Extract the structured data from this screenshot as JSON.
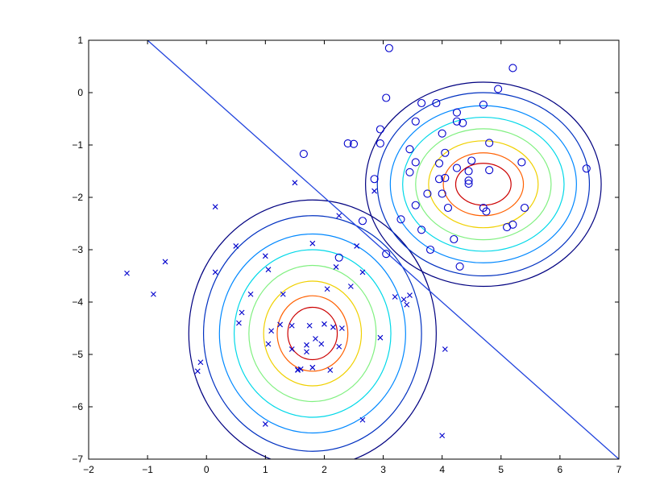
{
  "chart_data": {
    "type": "scatter",
    "title": "",
    "xlabel": "",
    "ylabel": "",
    "xlim": [
      -2,
      7
    ],
    "ylim": [
      -7,
      1
    ],
    "grid": false,
    "x_ticks": [
      -2,
      -1,
      0,
      1,
      2,
      3,
      4,
      5,
      6,
      7
    ],
    "y_ticks": [
      1,
      0,
      -1,
      -2,
      -3,
      -4,
      -5,
      -6,
      -7
    ],
    "x_tick_labels": [
      "−2",
      "−1",
      "0",
      "1",
      "2",
      "3",
      "4",
      "5",
      "6",
      "7"
    ],
    "y_tick_labels": [
      "1",
      "0",
      "−1",
      "−2",
      "−3",
      "−4",
      "−5",
      "−6",
      "−7"
    ],
    "colors": {
      "axis": "#000000",
      "marker": "#0000cc",
      "boundary": "#2244dd",
      "contour_levels": [
        "#000080",
        "#0030c0",
        "#0088ff",
        "#00d8e8",
        "#80f080",
        "#f0d000",
        "#ff6000",
        "#cc0000",
        "#700000"
      ]
    },
    "decision_boundary": {
      "x": [
        -1,
        7
      ],
      "y": [
        1,
        -7
      ]
    },
    "contours": [
      {
        "center": [
          1.8,
          -4.6
        ],
        "rx": [
          2.1,
          1.85,
          1.58,
          1.33,
          1.08,
          0.83,
          0.6,
          0.42
        ],
        "ry": [
          2.55,
          2.25,
          1.9,
          1.6,
          1.3,
          1.0,
          0.72,
          0.5
        ]
      },
      {
        "center": [
          4.7,
          -1.75
        ],
        "rx": [
          2.0,
          1.8,
          1.58,
          1.37,
          1.15,
          0.93,
          0.68,
          0.47
        ],
        "ry": [
          1.95,
          1.75,
          1.5,
          1.28,
          1.06,
          0.83,
          0.6,
          0.4
        ]
      }
    ],
    "series": [
      {
        "marker": "o",
        "x": [
          3.1,
          5.2,
          3.05,
          3.65,
          3.9,
          4.95,
          4.7,
          4.25,
          4.35,
          3.55,
          4.25,
          2.95,
          4.0,
          2.4,
          2.5,
          2.95,
          4.8,
          3.45,
          4.05,
          1.65,
          3.55,
          4.5,
          5.35,
          6.45,
          3.95,
          4.8,
          4.25,
          3.45,
          4.45,
          4.05,
          2.85,
          3.95,
          4.45,
          4.45,
          3.75,
          4.0,
          3.55,
          5.4,
          4.1,
          4.7,
          4.75,
          3.3,
          2.65,
          5.2,
          3.65,
          5.1,
          4.2,
          3.8,
          3.05,
          2.25,
          4.3
        ],
        "y": [
          0.85,
          0.47,
          -0.1,
          -0.2,
          -0.2,
          0.07,
          -0.23,
          -0.38,
          -0.58,
          -0.55,
          -0.55,
          -0.7,
          -0.78,
          -0.97,
          -0.98,
          -0.97,
          -0.96,
          -1.08,
          -1.15,
          -1.17,
          -1.33,
          -1.3,
          -1.33,
          -1.45,
          -1.35,
          -1.48,
          -1.44,
          -1.52,
          -1.5,
          -1.63,
          -1.65,
          -1.65,
          -1.68,
          -1.74,
          -1.93,
          -1.93,
          -2.15,
          -2.2,
          -2.2,
          -2.2,
          -2.27,
          -2.42,
          -2.45,
          -2.52,
          -2.62,
          -2.57,
          -2.8,
          -3.0,
          -3.08,
          -3.15,
          -3.32
        ]
      },
      {
        "marker": "x",
        "x": [
          1.5,
          0.15,
          2.25,
          2.85,
          0.5,
          1.8,
          2.55,
          2.2,
          1.0,
          -0.7,
          1.05,
          0.15,
          2.65,
          -1.35,
          2.45,
          2.05,
          -0.9,
          0.75,
          1.3,
          3.45,
          3.4,
          3.2,
          0.6,
          1.45,
          1.25,
          1.75,
          1.1,
          2.0,
          2.3,
          0.55,
          2.15,
          2.95,
          1.95,
          2.25,
          1.05,
          1.7,
          1.45,
          1.85,
          1.7,
          4.05,
          1.8,
          -0.1,
          1.55,
          2.1,
          1.6,
          1.55,
          1.8,
          -0.15,
          2.65,
          1.0,
          4.0,
          3.35
        ],
        "y": [
          -1.72,
          -2.18,
          -2.35,
          -1.88,
          -2.93,
          -2.88,
          -2.93,
          -3.33,
          -3.12,
          -3.23,
          -3.38,
          -3.43,
          -3.43,
          -3.45,
          -3.7,
          -3.75,
          -3.85,
          -3.85,
          -3.85,
          -3.87,
          -4.05,
          -3.9,
          -4.2,
          -4.45,
          -4.43,
          -4.45,
          -4.55,
          -4.42,
          -4.5,
          -4.4,
          -4.48,
          -4.68,
          -4.8,
          -4.85,
          -4.8,
          -4.82,
          -4.9,
          -4.7,
          -4.95,
          -4.9,
          -5.25,
          -5.15,
          -5.3,
          -5.3,
          -5.28,
          -5.29,
          -5.25,
          -5.32,
          -6.25,
          -6.33,
          -6.55,
          -3.95
        ]
      }
    ]
  }
}
